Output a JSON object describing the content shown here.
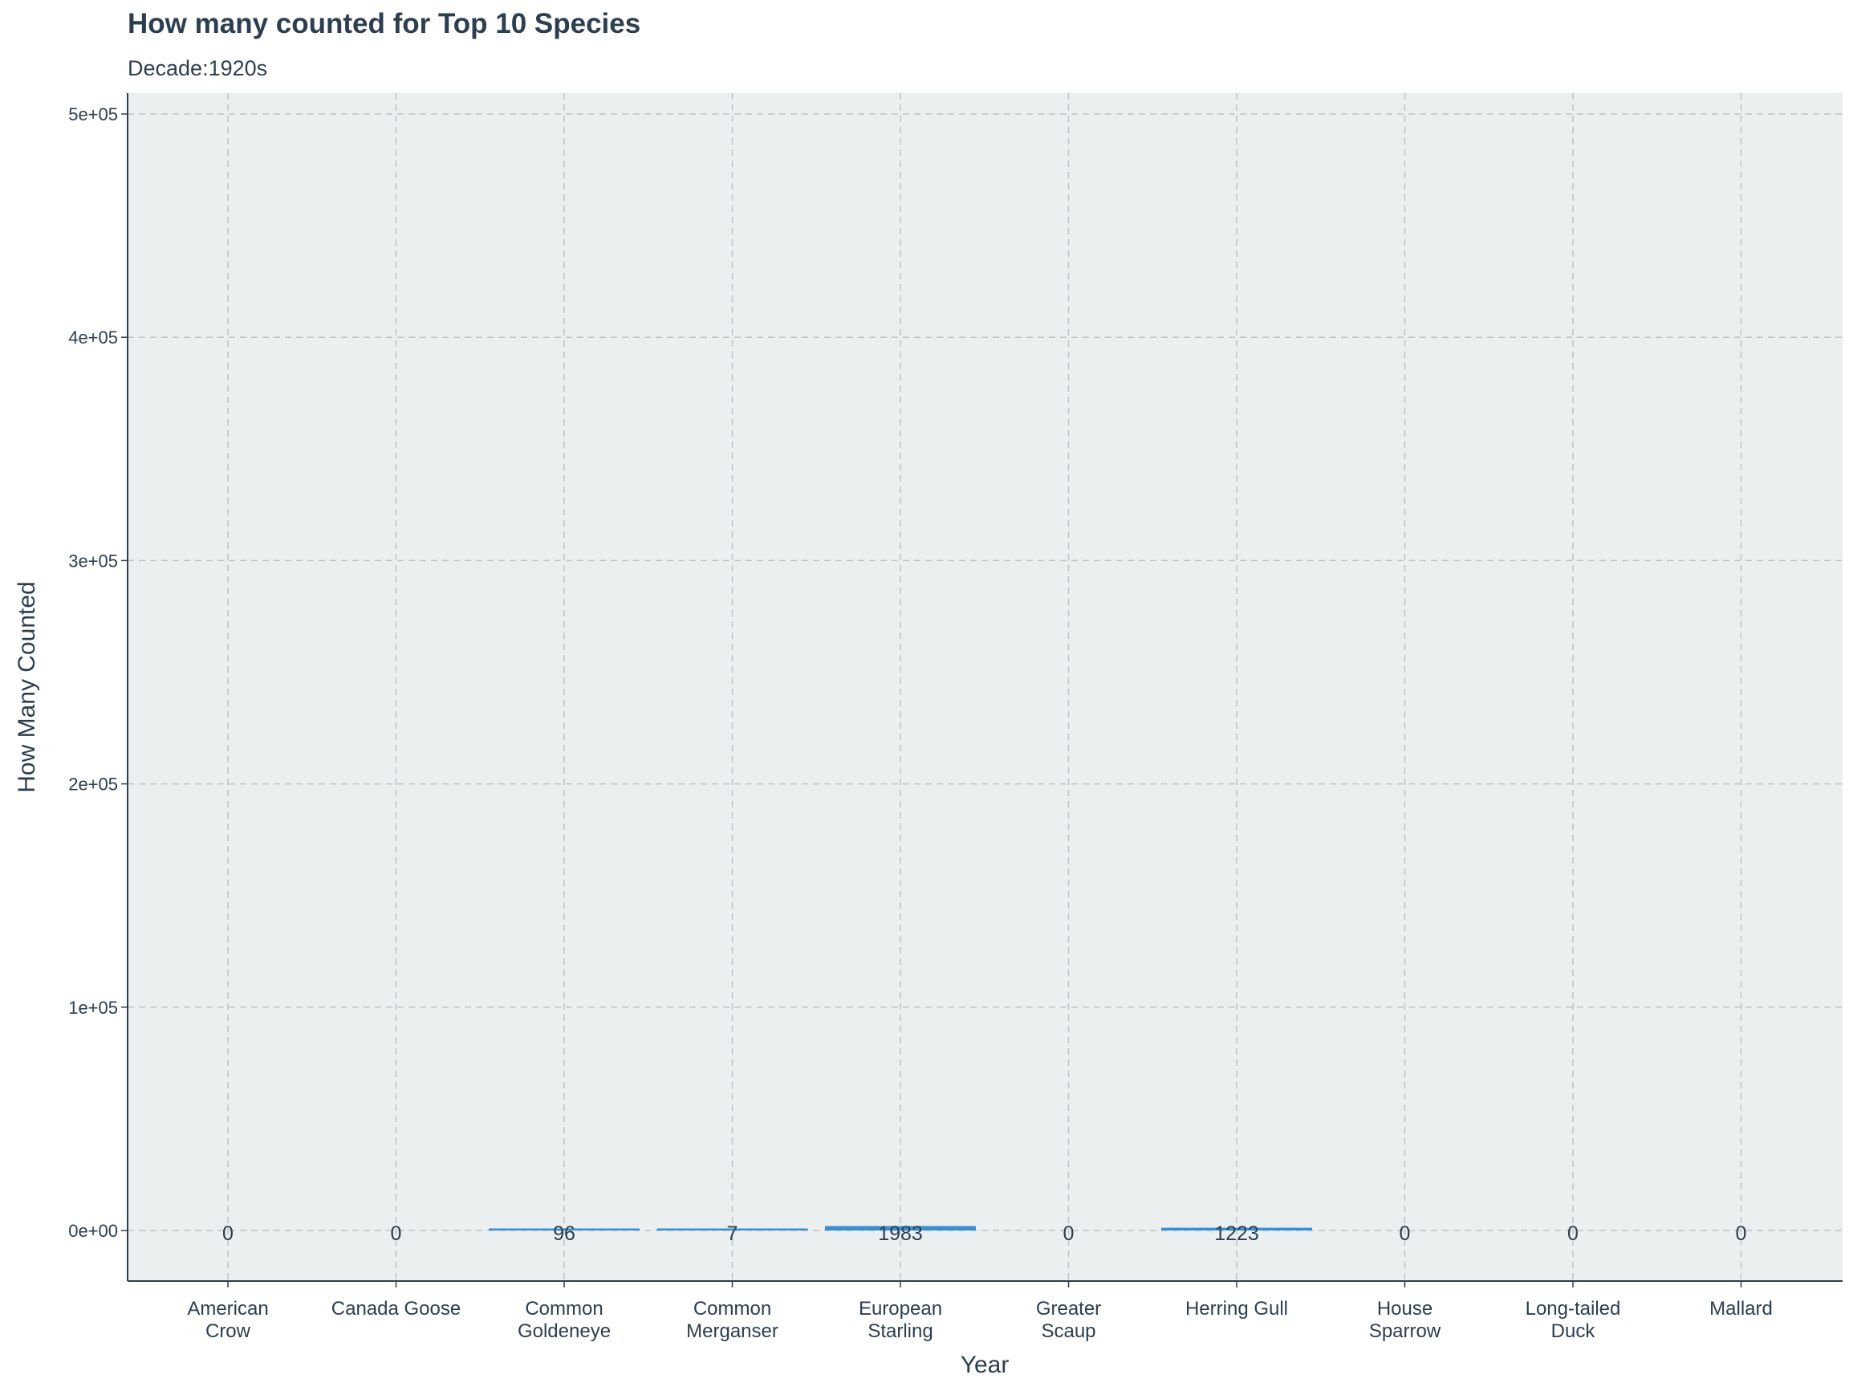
{
  "chart_data": {
    "type": "bar",
    "title": "How many counted for Top 10 Species",
    "subtitle": "Decade:1920s",
    "xlabel": "Year",
    "ylabel": "How Many Counted",
    "categories": [
      [
        "American",
        "Crow"
      ],
      [
        "Canada Goose"
      ],
      [
        "Common",
        "Goldeneye"
      ],
      [
        "Common",
        "Merganser"
      ],
      [
        "European",
        "Starling"
      ],
      [
        "Greater",
        "Scaup"
      ],
      [
        "Herring Gull"
      ],
      [
        "House",
        "Sparrow"
      ],
      [
        "Long-tailed",
        "Duck"
      ],
      [
        "Mallard"
      ]
    ],
    "values": [
      0,
      0,
      96,
      7,
      1983,
      0,
      1223,
      0,
      0,
      0
    ],
    "value_labels": [
      "0",
      "0",
      "96",
      "7",
      "1983",
      "0",
      "1223",
      "0",
      "0",
      "0"
    ],
    "yticks": [
      0,
      100000,
      200000,
      300000,
      400000,
      500000
    ],
    "ytick_labels": [
      "0e+00",
      "1e+05",
      "2e+05",
      "3e+05",
      "4e+05",
      "5e+05"
    ],
    "ylim": [
      -23000,
      510000
    ],
    "grid": true,
    "colors": {
      "bar": "#3a8fd0",
      "panel": "#ebeff0",
      "grid": "#bfc4c6",
      "text": "#2c3e50",
      "axis": "#2c3e50"
    }
  }
}
